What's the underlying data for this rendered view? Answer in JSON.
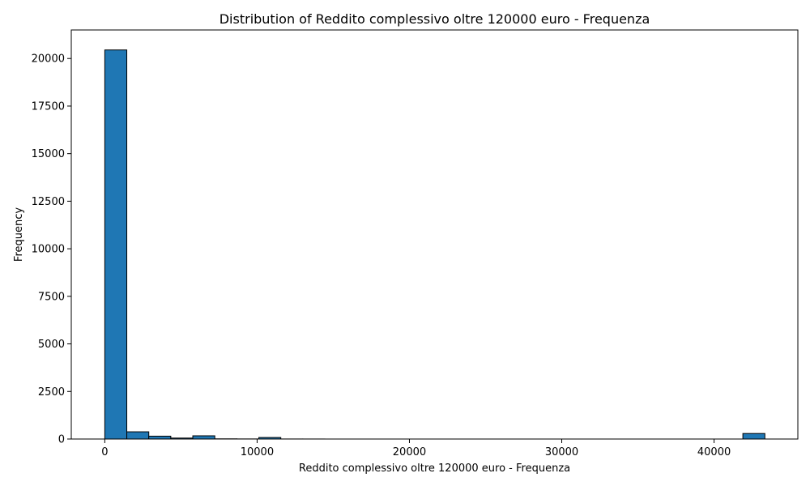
{
  "chart_data": {
    "type": "bar",
    "title": "Distribution of Reddito complessivo oltre 120000 euro - Frequenza",
    "xlabel": "Reddito complessivo oltre 120000 euro - Frequenza",
    "ylabel": "Frequency",
    "xlim": [
      -2200,
      45500
    ],
    "ylim": [
      0,
      21500
    ],
    "xticks": [
      0,
      10000,
      20000,
      30000,
      40000
    ],
    "yticks": [
      0,
      2500,
      5000,
      7500,
      10000,
      12500,
      15000,
      17500,
      20000
    ],
    "bin_edges": [
      0,
      1444.5,
      2889,
      4333.5,
      5778,
      7222.5,
      8667,
      10111.5,
      11556,
      13000.5,
      14445,
      15889.5,
      17334,
      18778.5,
      20223,
      21667.5,
      23112,
      24556.5,
      26001,
      27445.5,
      28890,
      30334.5,
      31779,
      33223.5,
      34668,
      36112.5,
      37557,
      39001.5,
      40446,
      41890.5,
      43335
    ],
    "values": [
      20450,
      380,
      150,
      50,
      170,
      10,
      5,
      80,
      3,
      2,
      0,
      0,
      0,
      0,
      0,
      0,
      0,
      0,
      0,
      0,
      0,
      0,
      0,
      0,
      0,
      0,
      0,
      0,
      0,
      290
    ],
    "bar_color": "#1f77b4",
    "edge_color": "#000000",
    "grid": false,
    "legend": "none"
  }
}
